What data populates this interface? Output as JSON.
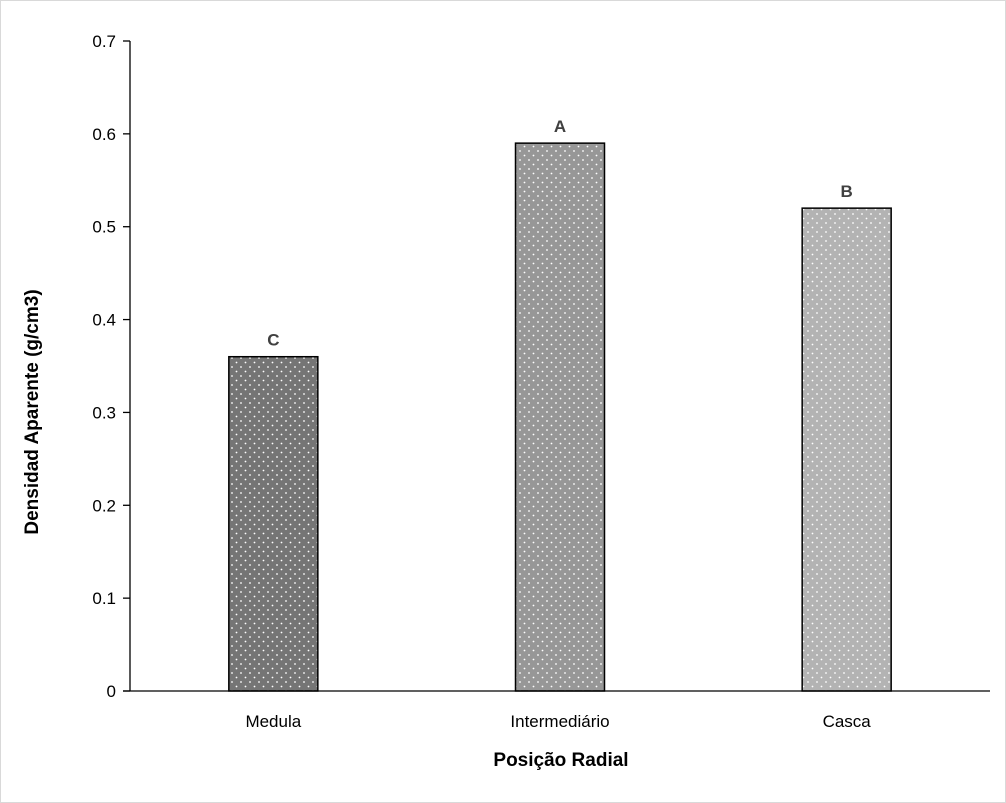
{
  "chart_data": {
    "type": "bar",
    "categories": [
      "Medula",
      "Intermediário",
      "Casca"
    ],
    "values": [
      0.36,
      0.59,
      0.52
    ],
    "bar_letters": [
      "C",
      "A",
      "B"
    ],
    "bar_colors": [
      "#757575",
      "#979797",
      "#b3b3b3"
    ],
    "xlabel": "Posição Radial",
    "ylabel": "Densidad Aparente (g/cm3)",
    "ylim": [
      0,
      0.7
    ],
    "yticks": [
      "0",
      "0.1",
      "0.2",
      "0.3",
      "0.4",
      "0.5",
      "0.6",
      "0.7"
    ],
    "grid": false,
    "legend": "none",
    "pattern": "white dots"
  }
}
